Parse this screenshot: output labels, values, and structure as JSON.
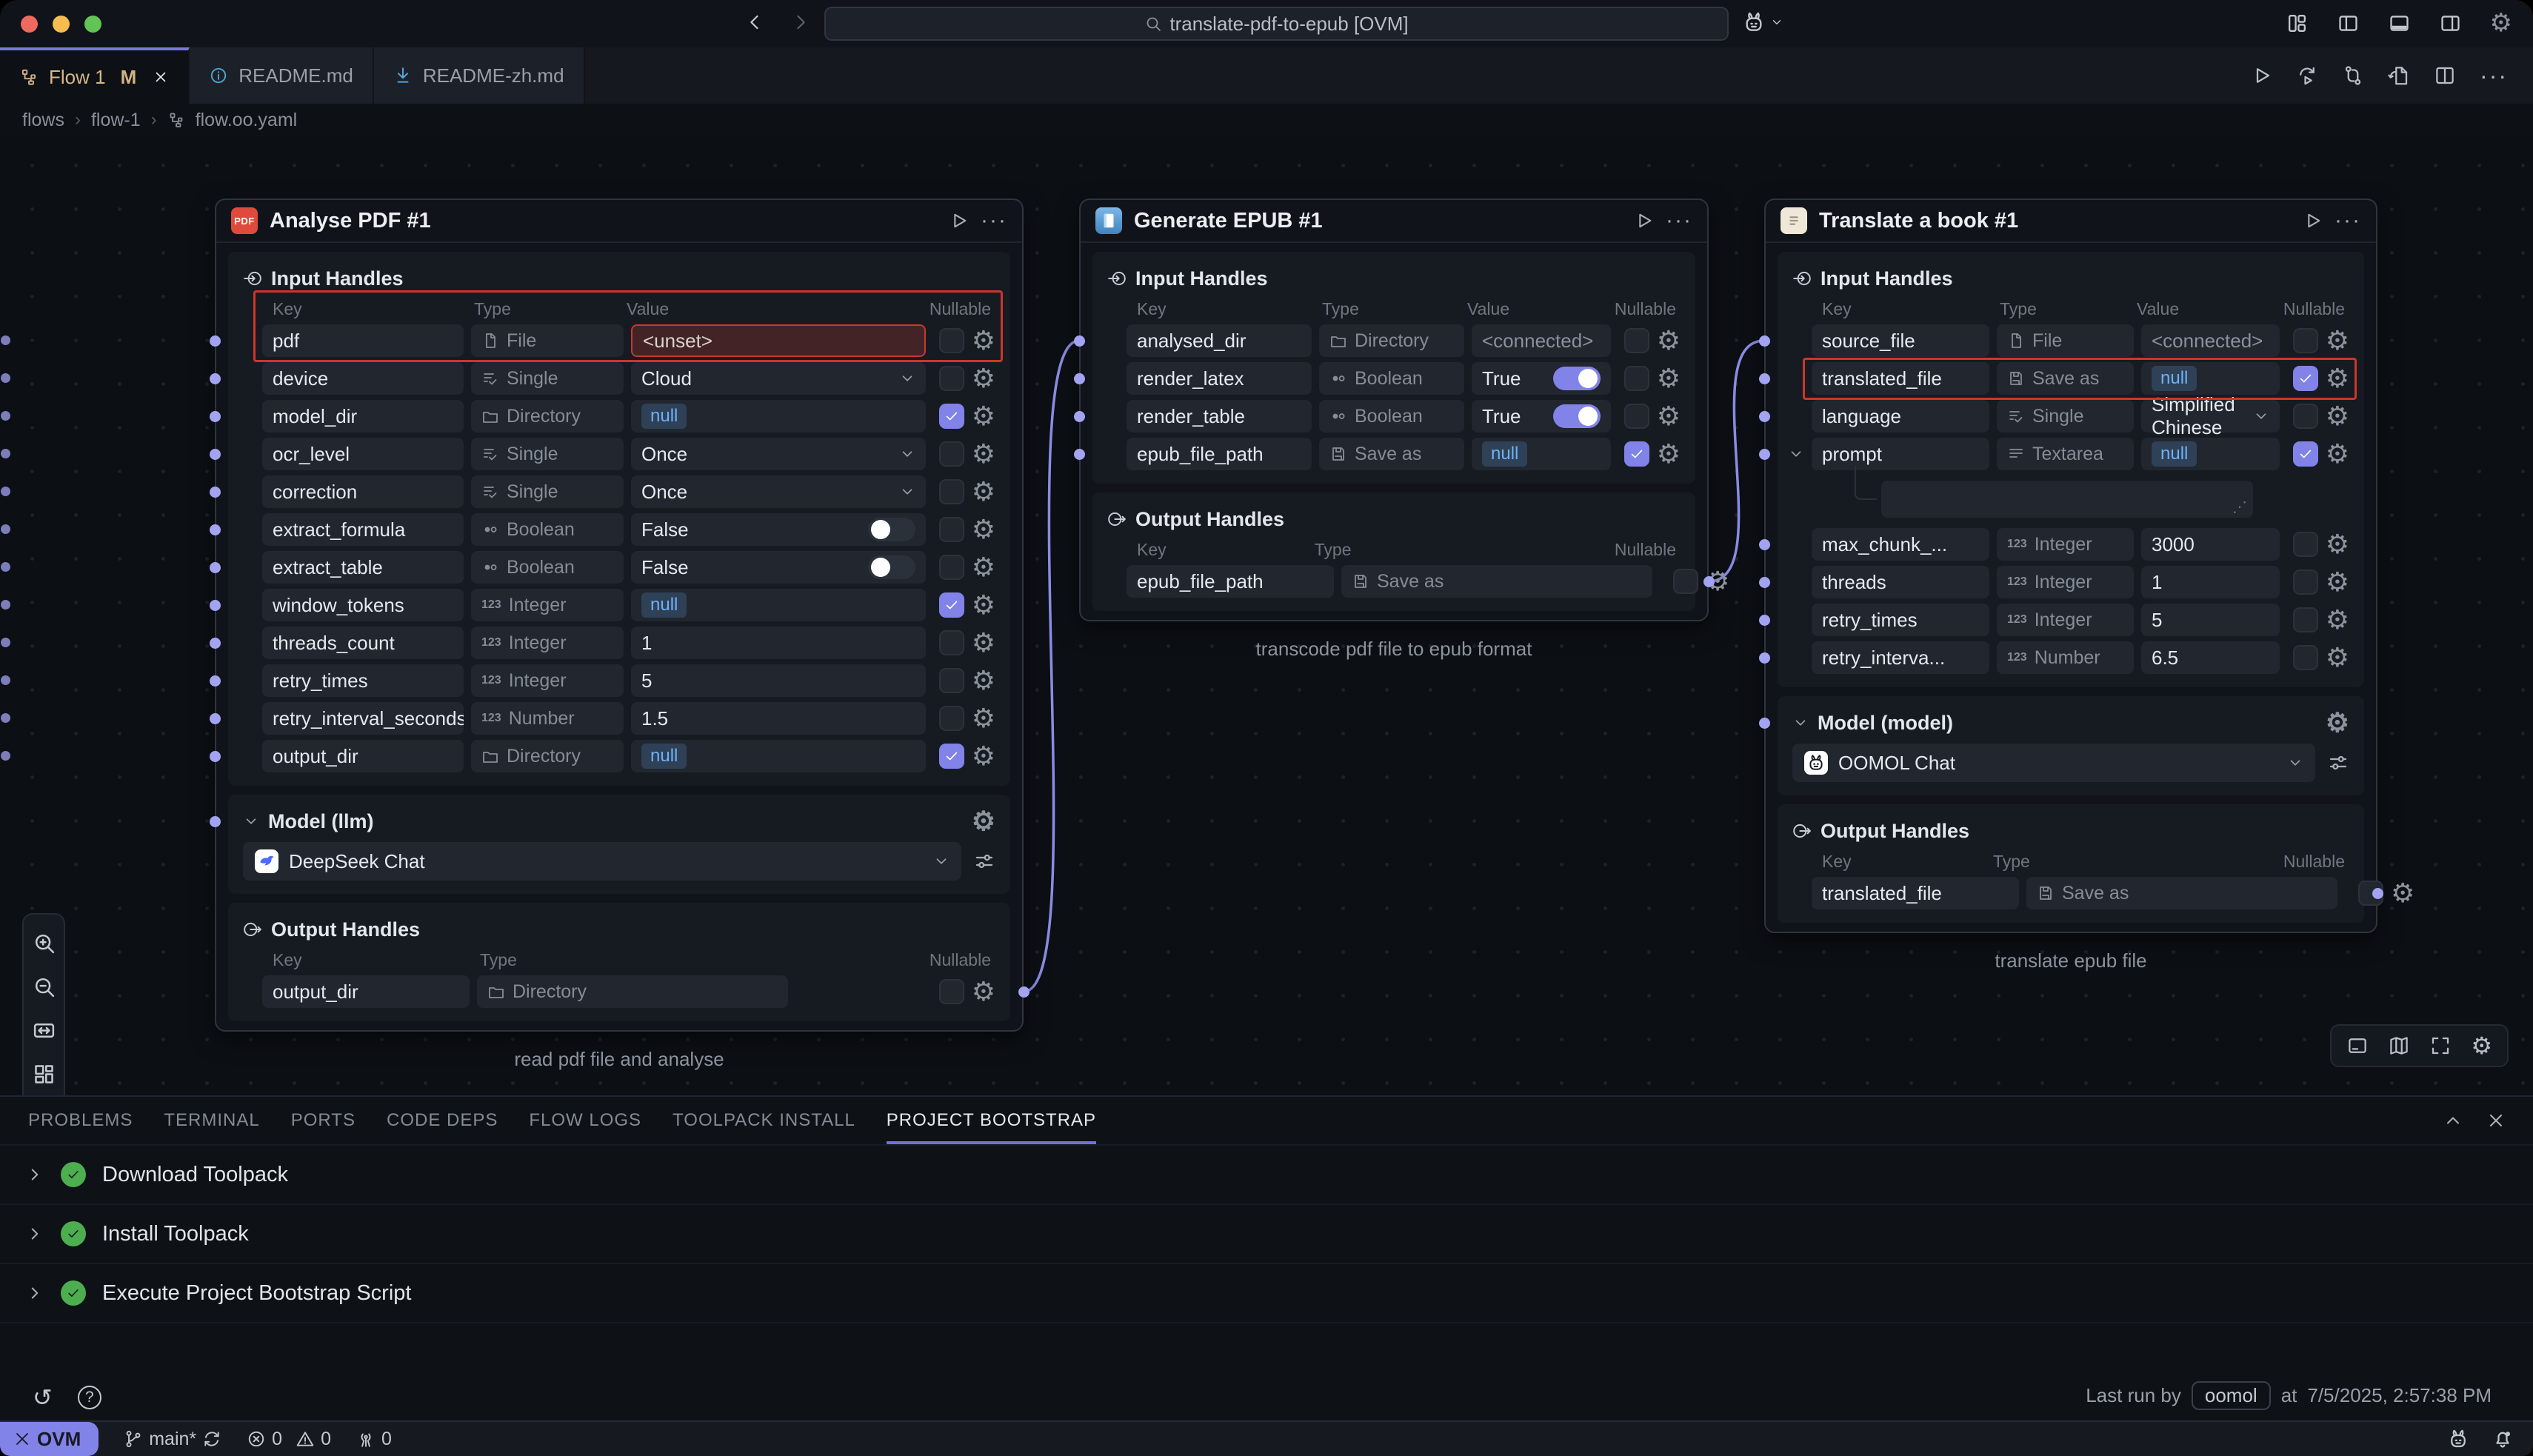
{
  "titlebar": {
    "search_text": "translate-pdf-to-epub [OVM]",
    "right_icons": [
      "customize-layout",
      "panel-left",
      "panel-bottom",
      "panel-right",
      "settings"
    ]
  },
  "tabs": [
    {
      "label": "Flow 1",
      "icon": "flow",
      "modified_badge": "M",
      "active": true,
      "closable": true
    },
    {
      "label": "README.md",
      "icon": "info",
      "active": false
    },
    {
      "label": "README-zh.md",
      "icon": "download",
      "active": false
    }
  ],
  "editor_actions": [
    "run",
    "rerun",
    "swap-vertical",
    "export-document",
    "split-editor",
    "more"
  ],
  "breadcrumb": [
    {
      "label": "flows"
    },
    {
      "label": "flow-1"
    },
    {
      "label": "flow.oo.yaml",
      "icon": "flow"
    }
  ],
  "canvas": {
    "left_toolbar": [
      "zoom-in",
      "zoom-out",
      "fit-width",
      "auto-layout"
    ],
    "bottom_right_toolbar": [
      "console",
      "minimap",
      "fullscreen",
      "settings"
    ],
    "colors": {
      "accent": "#8183e8",
      "handle": "#a2a4f2",
      "alert_outline": "#d0342a",
      "null_badge_text": "#6fb1f7",
      "success_green": "#4cae4f"
    }
  },
  "nodes": [
    {
      "title": "Analyse PDF #1",
      "icon": "pdf",
      "caption": "read pdf file and analyse",
      "sections": [
        {
          "kind": "handles",
          "direction": "in",
          "title": "Input Handles",
          "columns": [
            "Key",
            "Type",
            "Value",
            "Nullable"
          ],
          "rows": [
            {
              "key": "pdf",
              "type": "File",
              "type_icon": "file",
              "value": "<unset>",
              "value_kind": "unset",
              "nullable": false,
              "alert": true,
              "alert_includes_header": true
            },
            {
              "key": "device",
              "type": "Single",
              "type_icon": "single",
              "value": "Cloud",
              "value_kind": "select",
              "nullable": false
            },
            {
              "key": "model_dir",
              "type": "Directory",
              "type_icon": "folder",
              "value": "null",
              "value_kind": "null",
              "nullable": true
            },
            {
              "key": "ocr_level",
              "type": "Single",
              "type_icon": "single",
              "value": "Once",
              "value_kind": "select",
              "nullable": false
            },
            {
              "key": "correction",
              "type": "Single",
              "type_icon": "single",
              "value": "Once",
              "value_kind": "select",
              "nullable": false
            },
            {
              "key": "extract_formula",
              "type": "Boolean",
              "type_icon": "boolean",
              "value": "False",
              "value_kind": "toggle-off",
              "nullable": false
            },
            {
              "key": "extract_table",
              "type": "Boolean",
              "type_icon": "boolean",
              "value": "False",
              "value_kind": "toggle-off",
              "nullable": false
            },
            {
              "key": "window_tokens",
              "type": "Integer",
              "type_icon": "int",
              "value": "null",
              "value_kind": "null",
              "nullable": true
            },
            {
              "key": "threads_count",
              "type": "Integer",
              "type_icon": "int",
              "value": "1",
              "value_kind": "text",
              "nullable": false
            },
            {
              "key": "retry_times",
              "type": "Integer",
              "type_icon": "int",
              "value": "5",
              "value_kind": "text",
              "nullable": false
            },
            {
              "key": "retry_interval_seconds",
              "type": "Number",
              "type_icon": "int",
              "value": "1.5",
              "value_kind": "text",
              "nullable": false
            },
            {
              "key": "output_dir",
              "type": "Directory",
              "type_icon": "folder",
              "value": "null",
              "value_kind": "null",
              "nullable": true
            }
          ]
        },
        {
          "kind": "model",
          "title": "Model (llm)",
          "value": "DeepSeek Chat",
          "logo": "deepseek"
        },
        {
          "kind": "handles",
          "direction": "out",
          "title": "Output Handles",
          "columns": [
            "Key",
            "Type",
            "Nullable"
          ],
          "rows": [
            {
              "key": "output_dir",
              "type": "Directory",
              "type_icon": "folder",
              "nullable": false
            }
          ]
        }
      ]
    },
    {
      "title": "Generate EPUB #1",
      "icon": "epub",
      "caption": "transcode pdf file to epub format",
      "sections": [
        {
          "kind": "handles",
          "direction": "in",
          "title": "Input Handles",
          "columns": [
            "Key",
            "Type",
            "Value",
            "Nullable"
          ],
          "rows": [
            {
              "key": "analysed_dir",
              "type": "Directory",
              "type_icon": "folder",
              "value": "<connected>",
              "value_kind": "connected",
              "nullable": false
            },
            {
              "key": "render_latex",
              "type": "Boolean",
              "type_icon": "boolean",
              "value": "True",
              "value_kind": "toggle-on",
              "nullable": false
            },
            {
              "key": "render_table",
              "type": "Boolean",
              "type_icon": "boolean",
              "value": "True",
              "value_kind": "toggle-on",
              "nullable": false
            },
            {
              "key": "epub_file_path",
              "type": "Save as",
              "type_icon": "saveas",
              "value": "null",
              "value_kind": "null",
              "nullable": true
            }
          ]
        },
        {
          "kind": "handles",
          "direction": "out",
          "title": "Output Handles",
          "columns": [
            "Key",
            "Type",
            "Nullable"
          ],
          "rows": [
            {
              "key": "epub_file_path",
              "type": "Save as",
              "type_icon": "saveas",
              "nullable": false
            }
          ]
        }
      ]
    },
    {
      "title": "Translate a book #1",
      "icon": "book",
      "caption": "translate epub file",
      "sections": [
        {
          "kind": "handles",
          "direction": "in",
          "title": "Input Handles",
          "columns": [
            "Key",
            "Type",
            "Value",
            "Nullable"
          ],
          "rows": [
            {
              "key": "source_file",
              "type": "File",
              "type_icon": "file",
              "value": "<connected>",
              "value_kind": "connected",
              "nullable": false
            },
            {
              "key": "translated_file",
              "type": "Save as",
              "type_icon": "saveas",
              "value": "null",
              "value_kind": "null",
              "nullable": true,
              "alert": true
            },
            {
              "key": "language",
              "type": "Single",
              "type_icon": "single",
              "value": "Simplified Chinese",
              "value_kind": "select",
              "nullable": false
            },
            {
              "key": "prompt",
              "type": "Textarea",
              "type_icon": "textarea",
              "value": "null",
              "value_kind": "null",
              "nullable": true,
              "expander": true
            },
            {
              "textarea_sub": true
            },
            {
              "key": "max_chunk_...",
              "type": "Integer",
              "type_icon": "int",
              "value": "3000",
              "value_kind": "text",
              "nullable": false
            },
            {
              "key": "threads",
              "type": "Integer",
              "type_icon": "int",
              "value": "1",
              "value_kind": "text",
              "nullable": false
            },
            {
              "key": "retry_times",
              "type": "Integer",
              "type_icon": "int",
              "value": "5",
              "value_kind": "text",
              "nullable": false
            },
            {
              "key": "retry_interva...",
              "type": "Number",
              "type_icon": "int",
              "value": "6.5",
              "value_kind": "text",
              "nullable": false
            }
          ]
        },
        {
          "kind": "model",
          "title": "Model (model)",
          "value": "OOMOL Chat",
          "logo": "oomol"
        },
        {
          "kind": "handles",
          "direction": "out",
          "title": "Output Handles",
          "columns": [
            "Key",
            "Type",
            "Nullable"
          ],
          "rows": [
            {
              "key": "translated_file",
              "type": "Save as",
              "type_icon": "saveas",
              "nullable": false
            }
          ]
        }
      ]
    }
  ],
  "edges": [
    {
      "from": [
        0,
        "out",
        0
      ],
      "to": [
        1,
        "in",
        0
      ]
    },
    {
      "from": [
        1,
        "out",
        0
      ],
      "to": [
        2,
        "in",
        0
      ]
    }
  ],
  "panel": {
    "tabs": [
      "PROBLEMS",
      "TERMINAL",
      "PORTS",
      "CODE DEPS",
      "FLOW LOGS",
      "TOOLPACK INSTALL",
      "PROJECT BOOTSTRAP"
    ],
    "active_tab": "PROJECT BOOTSTRAP",
    "items": [
      "Download Toolpack",
      "Install Toolpack",
      "Execute Project Bootstrap Script"
    ],
    "last_run": {
      "prefix": "Last run by",
      "user": "oomol",
      "connector": "at",
      "time": "7/5/2025, 2:57:38 PM"
    }
  },
  "statusbar": {
    "remote_label": "OVM",
    "branch": "main*",
    "errors": "0",
    "warnings": "0",
    "ports": "0"
  }
}
